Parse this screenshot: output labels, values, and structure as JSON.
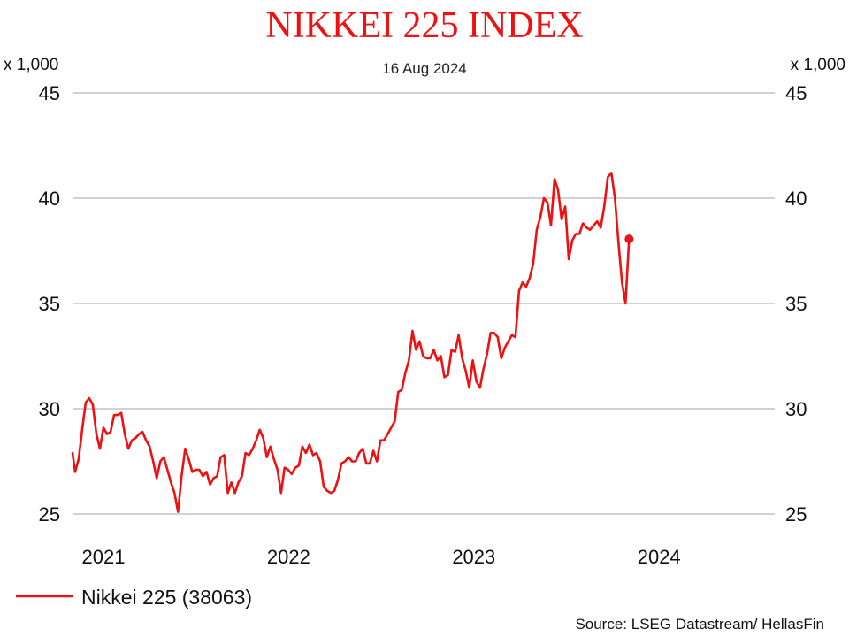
{
  "colors": {
    "series": "#ee1111",
    "title": "#ee1111",
    "grid": "#a6a6a6"
  },
  "chart_data": {
    "type": "line",
    "title": "NIKKEI 225 INDEX",
    "subtitle": "16 Aug 2024",
    "y_unit_left": "x 1,000",
    "y_unit_right": "x 1,000",
    "ylim": [
      25,
      45
    ],
    "yticks": [
      {
        "value": 25,
        "label": "25"
      },
      {
        "value": 30,
        "label": "30"
      },
      {
        "value": 35,
        "label": "35"
      },
      {
        "value": 40,
        "label": "40"
      },
      {
        "value": 45,
        "label": "45"
      }
    ],
    "xlim": [
      "2020-11-01",
      "2024-08-16"
    ],
    "xticks": [
      {
        "value": "2021-01-01",
        "label": "2021"
      },
      {
        "value": "2022-01-01",
        "label": "2022"
      },
      {
        "value": "2023-01-01",
        "label": "2023"
      },
      {
        "value": "2024-01-01",
        "label": "2024"
      }
    ],
    "grid": "horizontal",
    "legend_position": "bottom-left",
    "source": "Source: LSEG Datastream/ HellasFin",
    "series": [
      {
        "name": "Nikkei 225 (38063)",
        "last_value": 38.063,
        "points": [
          [
            "2020-11-01",
            27.9
          ],
          [
            "2020-11-06",
            27.0
          ],
          [
            "2020-11-13",
            27.6
          ],
          [
            "2020-11-20",
            29.0
          ],
          [
            "2020-11-27",
            30.3
          ],
          [
            "2020-12-04",
            30.5
          ],
          [
            "2020-12-11",
            30.2
          ],
          [
            "2020-12-18",
            28.8
          ],
          [
            "2020-12-25",
            28.1
          ],
          [
            "2021-01-01",
            29.1
          ],
          [
            "2021-01-08",
            28.8
          ],
          [
            "2021-01-15",
            28.9
          ],
          [
            "2021-01-22",
            29.7
          ],
          [
            "2021-01-29",
            29.7
          ],
          [
            "2021-02-05",
            29.8
          ],
          [
            "2021-02-12",
            28.8
          ],
          [
            "2021-02-19",
            28.1
          ],
          [
            "2021-02-26",
            28.5
          ],
          [
            "2021-03-05",
            28.6
          ],
          [
            "2021-03-12",
            28.8
          ],
          [
            "2021-03-19",
            28.9
          ],
          [
            "2021-03-26",
            28.5
          ],
          [
            "2021-04-02",
            28.2
          ],
          [
            "2021-04-09",
            27.5
          ],
          [
            "2021-04-16",
            26.7
          ],
          [
            "2021-04-23",
            27.5
          ],
          [
            "2021-04-30",
            27.7
          ],
          [
            "2021-05-07",
            27.1
          ],
          [
            "2021-05-14",
            26.5
          ],
          [
            "2021-05-21",
            26.0
          ],
          [
            "2021-05-28",
            25.1
          ],
          [
            "2021-06-04",
            26.8
          ],
          [
            "2021-06-11",
            28.1
          ],
          [
            "2021-06-18",
            27.6
          ],
          [
            "2021-06-25",
            27.0
          ],
          [
            "2021-07-02",
            27.1
          ],
          [
            "2021-07-09",
            27.1
          ],
          [
            "2021-07-16",
            26.8
          ],
          [
            "2021-07-23",
            27.0
          ],
          [
            "2021-07-30",
            26.4
          ],
          [
            "2021-08-06",
            26.7
          ],
          [
            "2021-08-13",
            26.8
          ],
          [
            "2021-08-20",
            27.7
          ],
          [
            "2021-08-27",
            27.8
          ],
          [
            "2021-09-03",
            26.0
          ],
          [
            "2021-09-10",
            26.5
          ],
          [
            "2021-09-17",
            26.0
          ],
          [
            "2021-09-24",
            26.5
          ],
          [
            "2021-10-01",
            26.8
          ],
          [
            "2021-10-08",
            27.9
          ],
          [
            "2021-10-15",
            27.8
          ],
          [
            "2021-10-22",
            28.1
          ],
          [
            "2021-10-29",
            28.5
          ],
          [
            "2021-11-05",
            29.0
          ],
          [
            "2021-11-12",
            28.6
          ],
          [
            "2021-11-19",
            27.7
          ],
          [
            "2021-11-26",
            28.2
          ],
          [
            "2021-12-03",
            27.6
          ],
          [
            "2021-12-10",
            27.1
          ],
          [
            "2021-12-17",
            26.0
          ],
          [
            "2021-12-24",
            27.2
          ],
          [
            "2021-12-31",
            27.1
          ],
          [
            "2022-01-07",
            26.9
          ],
          [
            "2022-01-14",
            27.2
          ],
          [
            "2022-01-21",
            27.3
          ],
          [
            "2022-01-28",
            28.2
          ],
          [
            "2022-02-04",
            27.9
          ],
          [
            "2022-02-11",
            28.3
          ],
          [
            "2022-02-18",
            27.8
          ],
          [
            "2022-02-25",
            27.9
          ],
          [
            "2022-03-04",
            27.5
          ],
          [
            "2022-03-11",
            26.3
          ],
          [
            "2022-03-18",
            26.1
          ],
          [
            "2022-03-25",
            26.0
          ],
          [
            "2022-04-01",
            26.1
          ],
          [
            "2022-04-08",
            26.6
          ],
          [
            "2022-04-15",
            27.4
          ],
          [
            "2022-04-22",
            27.5
          ],
          [
            "2022-04-29",
            27.7
          ],
          [
            "2022-05-06",
            27.5
          ],
          [
            "2022-05-13",
            27.5
          ],
          [
            "2022-05-20",
            27.9
          ],
          [
            "2022-05-27",
            28.1
          ],
          [
            "2022-06-03",
            27.4
          ],
          [
            "2022-06-10",
            27.4
          ],
          [
            "2022-06-17",
            28.0
          ],
          [
            "2022-06-24",
            27.5
          ],
          [
            "2022-07-01",
            28.5
          ],
          [
            "2022-07-08",
            28.5
          ],
          [
            "2022-07-15",
            28.8
          ],
          [
            "2022-07-22",
            29.1
          ],
          [
            "2022-07-29",
            29.4
          ],
          [
            "2022-08-05",
            30.8
          ],
          [
            "2022-08-12",
            30.9
          ],
          [
            "2022-08-19",
            31.7
          ],
          [
            "2022-08-26",
            32.3
          ],
          [
            "2022-09-02",
            33.7
          ],
          [
            "2022-09-09",
            32.8
          ],
          [
            "2022-09-16",
            33.2
          ],
          [
            "2022-09-23",
            32.5
          ],
          [
            "2022-09-30",
            32.4
          ],
          [
            "2022-10-07",
            32.4
          ],
          [
            "2022-10-14",
            32.8
          ],
          [
            "2022-10-21",
            32.3
          ],
          [
            "2022-10-28",
            32.5
          ],
          [
            "2022-11-04",
            31.5
          ],
          [
            "2022-11-11",
            31.6
          ],
          [
            "2022-11-18",
            32.8
          ],
          [
            "2022-11-25",
            32.7
          ],
          [
            "2022-12-02",
            33.5
          ],
          [
            "2022-12-09",
            32.4
          ],
          [
            "2022-12-16",
            31.8
          ],
          [
            "2022-12-23",
            31.0
          ],
          [
            "2022-12-30",
            32.3
          ],
          [
            "2023-01-06",
            31.3
          ],
          [
            "2023-01-13",
            31.0
          ],
          [
            "2023-01-20",
            31.9
          ],
          [
            "2023-01-27",
            32.6
          ],
          [
            "2023-02-03",
            33.6
          ],
          [
            "2023-02-10",
            33.6
          ],
          [
            "2023-02-17",
            33.4
          ],
          [
            "2023-02-24",
            32.4
          ],
          [
            "2023-03-03",
            32.9
          ],
          [
            "2023-03-10",
            33.2
          ],
          [
            "2023-03-17",
            33.5
          ],
          [
            "2023-03-24",
            33.4
          ],
          [
            "2023-03-31",
            35.6
          ],
          [
            "2023-04-07",
            36.0
          ],
          [
            "2023-04-14",
            35.8
          ],
          [
            "2023-04-21",
            36.2
          ],
          [
            "2023-04-28",
            36.9
          ],
          [
            "2023-05-05",
            38.5
          ],
          [
            "2023-05-12",
            39.1
          ],
          [
            "2023-05-19",
            40.0
          ],
          [
            "2023-05-26",
            39.8
          ],
          [
            "2023-06-02",
            38.7
          ],
          [
            "2023-06-09",
            40.9
          ],
          [
            "2023-06-16",
            40.4
          ],
          [
            "2023-06-23",
            39.0
          ],
          [
            "2023-06-30",
            39.6
          ],
          [
            "2023-07-07",
            37.1
          ],
          [
            "2023-07-14",
            38.0
          ],
          [
            "2023-07-21",
            38.3
          ],
          [
            "2023-07-28",
            38.3
          ],
          [
            "2023-08-04",
            38.8
          ],
          [
            "2023-08-11",
            38.6
          ],
          [
            "2023-08-18",
            38.5
          ],
          [
            "2023-08-25",
            38.7
          ],
          [
            "2023-09-01",
            38.9
          ],
          [
            "2023-09-08",
            38.6
          ],
          [
            "2023-09-15",
            39.6
          ],
          [
            "2023-09-22",
            41.0
          ],
          [
            "2023-09-29",
            41.2
          ],
          [
            "2023-10-06",
            40.0
          ],
          [
            "2023-10-13",
            37.9
          ],
          [
            "2023-10-20",
            36.0
          ],
          [
            "2023-10-27",
            35.0
          ],
          [
            "2023-11-03",
            38.063
          ]
        ]
      }
    ]
  }
}
